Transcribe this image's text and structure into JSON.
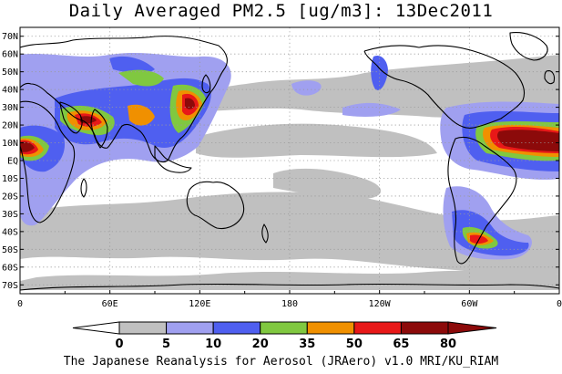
{
  "title": "Daily Averaged PM2.5 [ug/m3]: 13Dec2011",
  "credit": "The Japanese Reanalysis for Aerosol (JRAero) v1.0 MRI/KU_RIAM",
  "map": {
    "projection": "equirectangular",
    "lon_range": [
      0,
      360
    ],
    "lat_range": [
      -75,
      75
    ],
    "lat_labels": [
      "70N",
      "60N",
      "50N",
      "40N",
      "30N",
      "20N",
      "10N",
      "EQ",
      "10S",
      "20S",
      "30S",
      "40S",
      "50S",
      "60S",
      "70S"
    ],
    "lon_labels": [
      "0",
      "60E",
      "120E",
      "180",
      "120W",
      "60W",
      "0"
    ],
    "grid": "dotted"
  },
  "colorbar": {
    "labels": [
      "0",
      "5",
      "10",
      "20",
      "35",
      "50",
      "65",
      "80"
    ],
    "colors": [
      "#ffffff",
      "#c0c0c0",
      "#a0a0f0",
      "#4f5ff0",
      "#80c840",
      "#f09000",
      "#e81818",
      "#8c0a0a"
    ],
    "open_ends": true
  },
  "colors": {
    "gray": "#c0c0c0",
    "light_blue": "#a0a0f0",
    "blue": "#4f5ff0",
    "green": "#80c840",
    "orange": "#f09000",
    "red": "#e81818",
    "dark_red": "#8c0a0a",
    "coast": "#000000",
    "grid": "#9a9a9a"
  }
}
